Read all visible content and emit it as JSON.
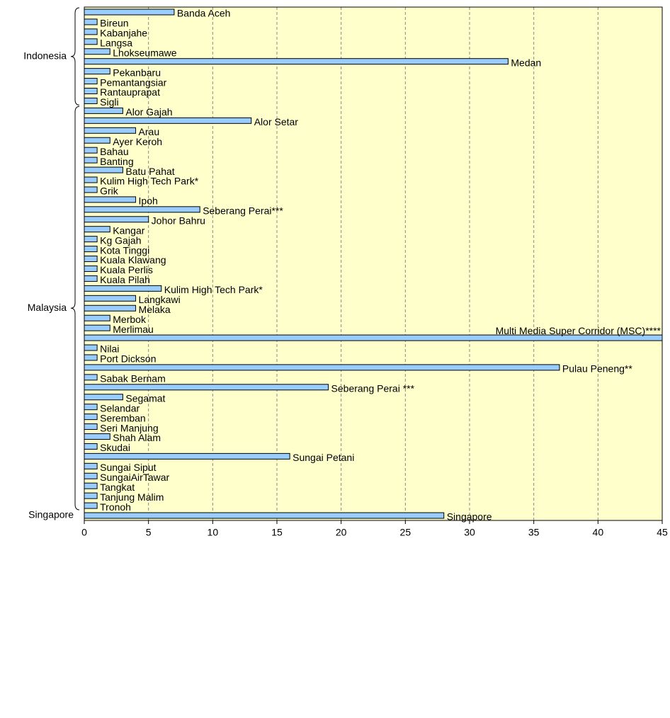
{
  "chart_data": {
    "type": "bar",
    "orientation": "horizontal",
    "color": "#99ccff",
    "background": "#ffffcc",
    "grid": true,
    "xlim": [
      0,
      45
    ],
    "xticks": [
      0,
      5,
      10,
      15,
      20,
      25,
      30,
      35,
      40,
      45
    ],
    "groups": [
      {
        "name": "Indonesia",
        "categories": [
          "Banda Aceh",
          "Bireun",
          "Kabanjahe",
          "Langsa",
          "Lhokseumawe",
          "Medan",
          "Pekanbaru",
          "Pemantangsiar",
          "Rantauprapat",
          "Sigli"
        ],
        "values": [
          7,
          1,
          1,
          1,
          2,
          33,
          2,
          1,
          1,
          1
        ]
      },
      {
        "name": "Malaysia",
        "categories": [
          "Alor Gajah",
          "Alor Setar",
          "Arau",
          "Ayer Keroh",
          "Bahau",
          "Banting",
          "Batu Pahat",
          "Kulim High Tech Park*",
          "Grik",
          "Ipoh",
          "Seberang Perai***",
          "Johor Bahru",
          "Kangar",
          "Kg Gajah",
          "Kota Tinggi",
          "Kuala Klawang",
          "Kuala Perlis",
          "Kuala Pilah",
          "Kulim High Tech Park*",
          "Langkawi",
          "Melaka",
          "Merbok",
          "Merlimau",
          "Multi Media Super Corridor (MSC)****",
          "Nilai",
          "Port Dickson",
          "Pulau Peneng**",
          "Sabak Bernam",
          "Seberang Perai ***",
          "Segamat",
          "Selandar",
          "Seremban",
          "Seri Manjung",
          "Shah Alam",
          "Skudai",
          "Sungai Petani",
          "Sungai Siput",
          "SungaiAirTawar",
          "Tangkat",
          "Tanjung Malim",
          "Tronoh"
        ],
        "values": [
          3,
          13,
          4,
          2,
          1,
          1,
          3,
          1,
          1,
          4,
          9,
          5,
          2,
          1,
          1,
          1,
          1,
          1,
          6,
          4,
          4,
          2,
          2,
          45,
          1,
          1,
          37,
          1,
          19,
          3,
          1,
          1,
          1,
          2,
          1,
          16,
          1,
          1,
          1,
          1,
          1
        ]
      },
      {
        "name": "Singapore",
        "categories": [
          "Singapore"
        ],
        "values": [
          28
        ]
      }
    ]
  }
}
